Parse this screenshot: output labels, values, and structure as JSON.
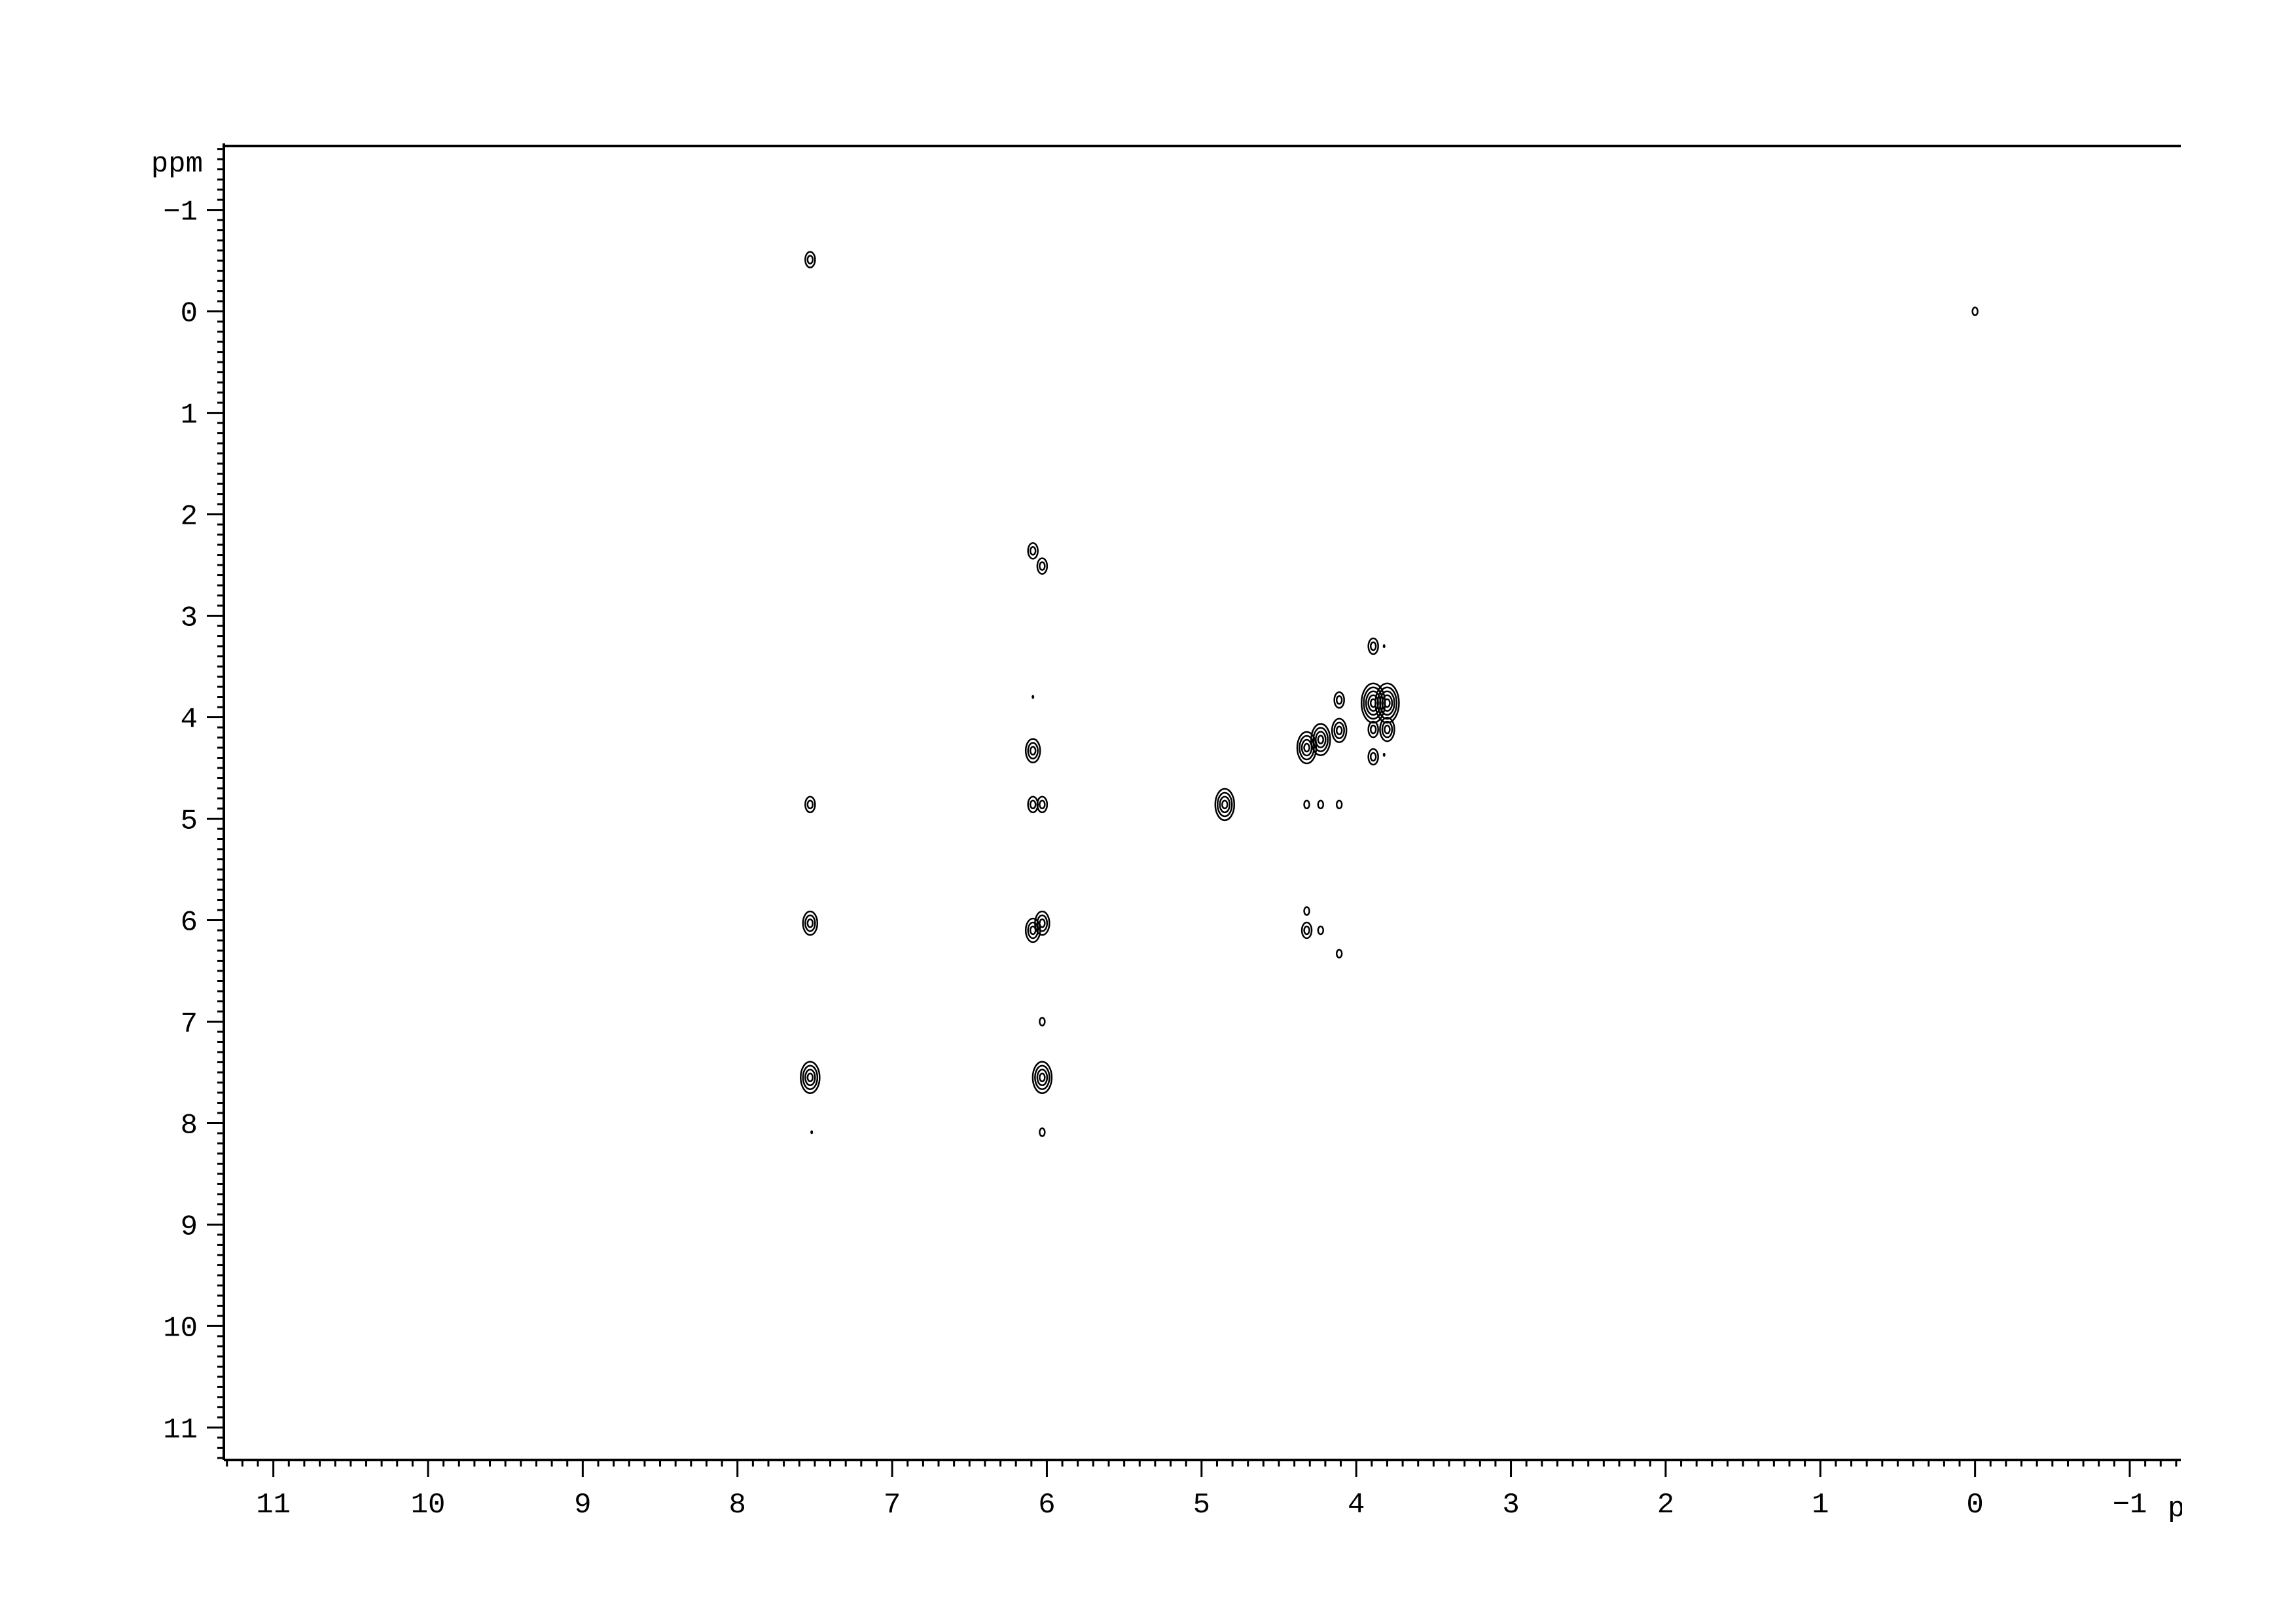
{
  "chart_data": {
    "type": "contour",
    "xlabel": "ppm",
    "ylabel": "ppm",
    "xlim": [
      11.32,
      -1.33
    ],
    "ylim": [
      -1.63,
      11.32
    ],
    "x_reversed": true,
    "y_reversed": true,
    "x_ticks": [
      11,
      10,
      9,
      8,
      7,
      6,
      5,
      4,
      3,
      2,
      1,
      0,
      -1
    ],
    "y_ticks": [
      -1,
      0,
      1,
      2,
      3,
      4,
      5,
      6,
      7,
      8,
      9,
      10,
      11
    ],
    "grid": false,
    "contour_color": "#000000",
    "peaks": [
      {
        "x": 7.53,
        "y": -0.51,
        "level": 2
      },
      {
        "x": 0.0,
        "y": 0.0,
        "level": 1
      },
      {
        "x": 6.09,
        "y": 2.36,
        "level": 2
      },
      {
        "x": 6.03,
        "y": 2.51,
        "level": 2
      },
      {
        "x": 6.09,
        "y": 3.8,
        "level": 0
      },
      {
        "x": 6.09,
        "y": 4.33,
        "level": 3
      },
      {
        "x": 7.53,
        "y": 4.86,
        "level": 2
      },
      {
        "x": 6.09,
        "y": 4.86,
        "level": 2
      },
      {
        "x": 6.03,
        "y": 4.86,
        "level": 2
      },
      {
        "x": 4.85,
        "y": 4.86,
        "level": 4
      },
      {
        "x": 4.32,
        "y": 4.86,
        "level": 1
      },
      {
        "x": 4.23,
        "y": 4.86,
        "level": 1
      },
      {
        "x": 4.11,
        "y": 4.86,
        "level": 1
      },
      {
        "x": 7.53,
        "y": 6.03,
        "level": 3
      },
      {
        "x": 6.09,
        "y": 6.1,
        "level": 3
      },
      {
        "x": 6.03,
        "y": 6.03,
        "level": 3
      },
      {
        "x": 4.32,
        "y": 5.91,
        "level": 1
      },
      {
        "x": 4.32,
        "y": 6.1,
        "level": 2
      },
      {
        "x": 4.23,
        "y": 6.1,
        "level": 1
      },
      {
        "x": 4.11,
        "y": 6.33,
        "level": 1
      },
      {
        "x": 6.03,
        "y": 7.0,
        "level": 1
      },
      {
        "x": 7.53,
        "y": 7.55,
        "level": 4
      },
      {
        "x": 6.03,
        "y": 7.55,
        "level": 4
      },
      {
        "x": 6.03,
        "y": 8.09,
        "level": 1
      },
      {
        "x": 7.52,
        "y": 8.09,
        "level": 0
      },
      {
        "x": 4.32,
        "y": 4.3,
        "level": 4
      },
      {
        "x": 4.23,
        "y": 4.22,
        "level": 4
      },
      {
        "x": 4.11,
        "y": 4.13,
        "level": 3
      },
      {
        "x": 4.11,
        "y": 3.83,
        "level": 2
      },
      {
        "x": 3.89,
        "y": 3.86,
        "level": 5
      },
      {
        "x": 3.8,
        "y": 3.86,
        "level": 5
      },
      {
        "x": 3.89,
        "y": 4.12,
        "level": 2
      },
      {
        "x": 3.8,
        "y": 4.12,
        "level": 3
      },
      {
        "x": 3.89,
        "y": 3.3,
        "level": 2
      },
      {
        "x": 3.82,
        "y": 3.3,
        "level": 0
      },
      {
        "x": 3.89,
        "y": 4.39,
        "level": 2
      },
      {
        "x": 3.82,
        "y": 4.37,
        "level": 0
      }
    ]
  }
}
